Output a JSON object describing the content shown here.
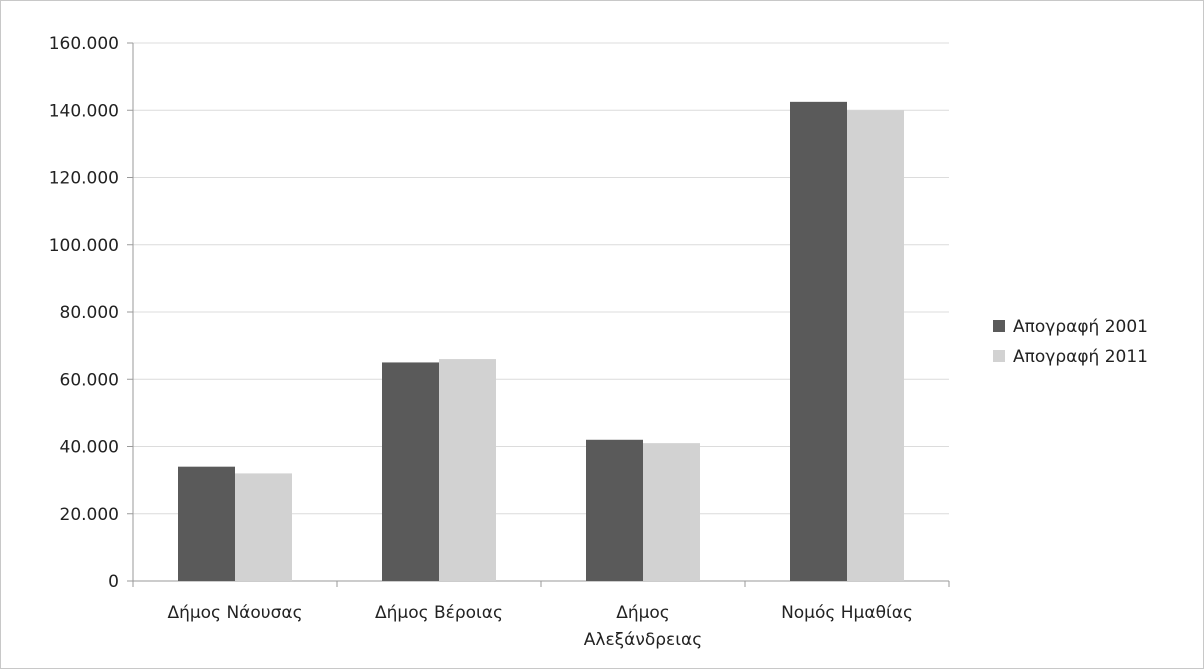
{
  "chart_data": {
    "type": "bar",
    "categories": [
      [
        "Δήμος Νάουσας"
      ],
      [
        "Δήμος Βέροιας"
      ],
      [
        "Δήμος",
        "Αλεξάνδρειας"
      ],
      [
        "Νομός Ημαθίας"
      ]
    ],
    "series": [
      {
        "name": "Απογραφή 2001",
        "color": "#5a5a5a",
        "values": [
          34000,
          65000,
          42000,
          142500
        ]
      },
      {
        "name": "Απογραφή 2011",
        "color": "#d2d2d2",
        "values": [
          32000,
          66000,
          41000,
          140000
        ]
      }
    ],
    "ylim": [
      0,
      160000
    ],
    "yticks": [
      0,
      20000,
      40000,
      60000,
      80000,
      100000,
      120000,
      140000,
      160000
    ],
    "ytick_labels": [
      "0",
      "20.000",
      "40.000",
      "60.000",
      "80.000",
      "100.000",
      "120.000",
      "140.000",
      "160.000"
    ],
    "grid": true,
    "legend_position": "right"
  }
}
